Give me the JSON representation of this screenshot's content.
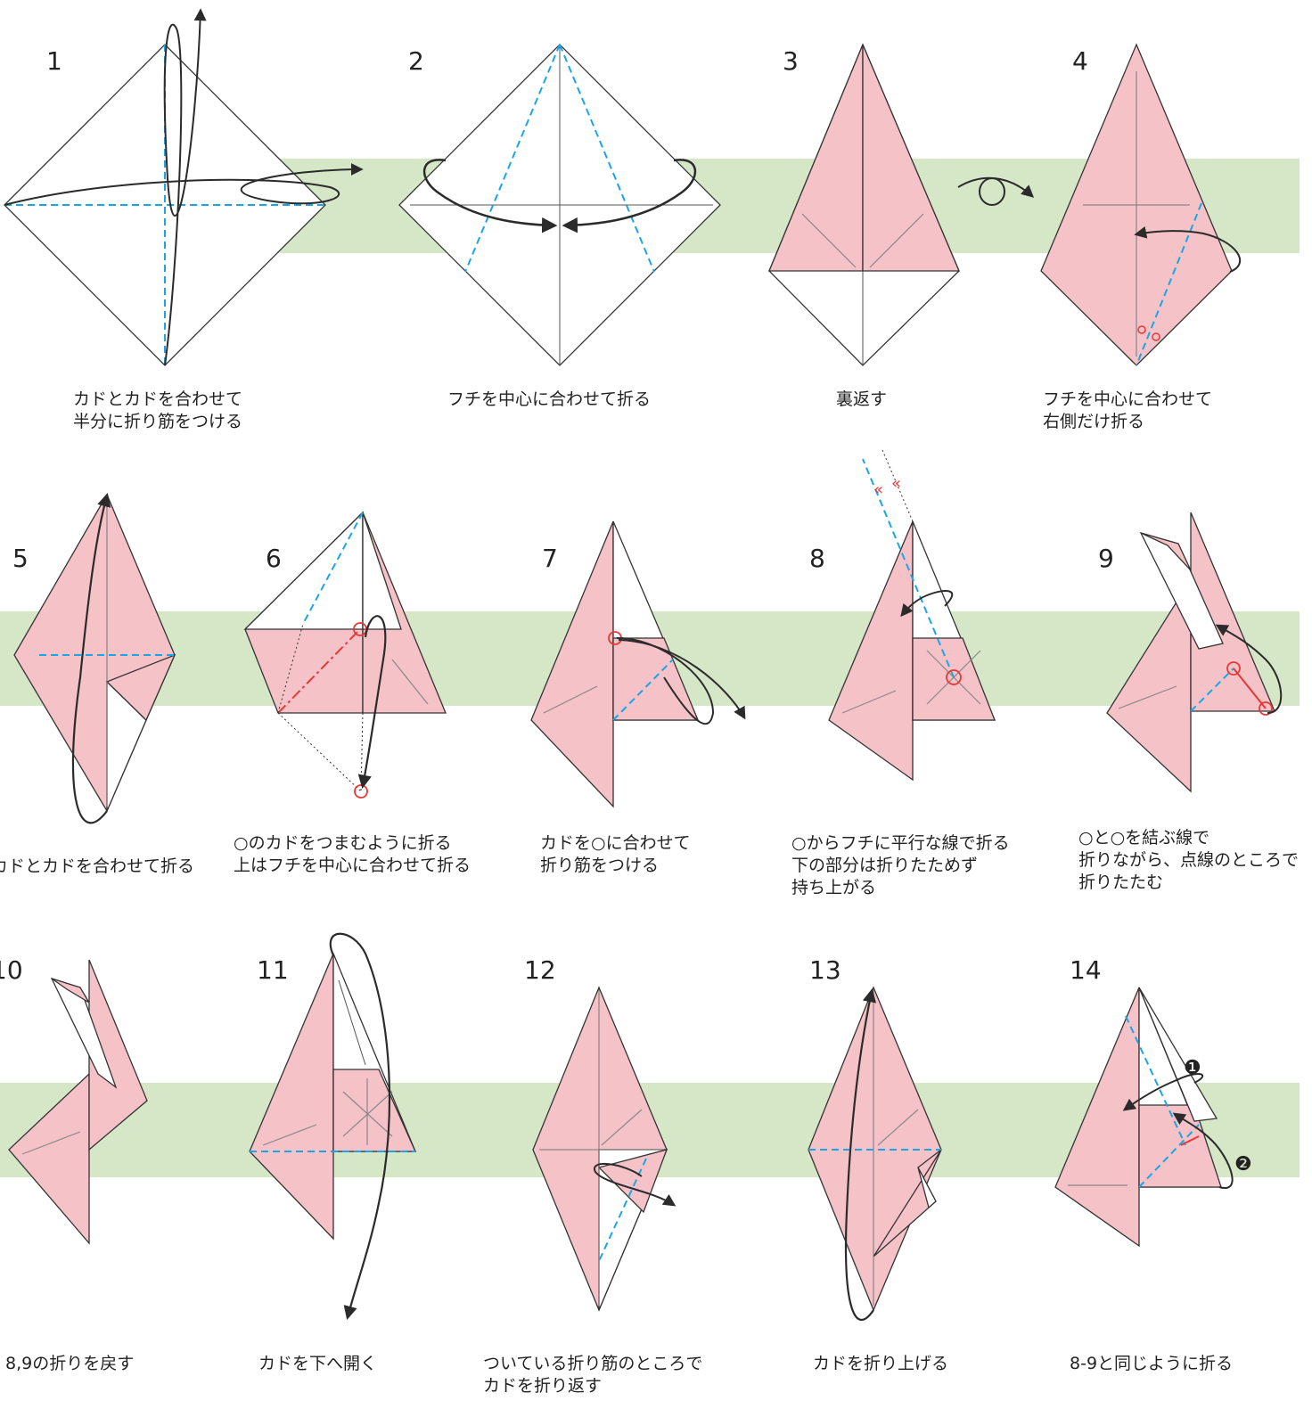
{
  "colors": {
    "paper_pink": "#f5c2c8",
    "paper_white": "#ffffff",
    "band_green": "#d6e7c8",
    "valley_fold_blue": "#1aa5e6",
    "mountain_fold_red": "#e53935",
    "arrow_dark": "#2b2b2b"
  },
  "icons": {
    "valley_fold": "blue-dashed-line",
    "mountain_fold": "red-dash-dot-line",
    "fold_arrow": "curved-arrow",
    "turn_over": "loop-arrow",
    "reference_mark": "red-circle",
    "step_marker_1": "❶",
    "step_marker_2": "❷"
  },
  "steps": [
    {
      "number": "1",
      "caption": "カドとカドを合わせて\n半分に折り筋をつける"
    },
    {
      "number": "2",
      "caption": "フチを中心に合わせて折る"
    },
    {
      "number": "3",
      "caption": "裏返す"
    },
    {
      "number": "4",
      "caption": "フチを中心に合わせて\n右側だけ折る"
    },
    {
      "number": "5",
      "caption": "カドとカドを合わせて折る"
    },
    {
      "number": "6",
      "caption": "○のカドをつまむように折る\n上はフチを中心に合わせて折る"
    },
    {
      "number": "7",
      "caption": "カドを○に合わせて\n折り筋をつける"
    },
    {
      "number": "8",
      "caption": "○からフチに平行な線で折る\n下の部分は折りたためず\n持ち上がる"
    },
    {
      "number": "9",
      "caption": "○と○を結ぶ線で\n折りながら、点線のところで\n折りたたむ"
    },
    {
      "number": "10",
      "caption": "8,9の折りを戻す"
    },
    {
      "number": "11",
      "caption": "カドを下へ開く"
    },
    {
      "number": "12",
      "caption": "ついている折り筋のところで\nカドを折り返す"
    },
    {
      "number": "13",
      "caption": "カドを折り上げる"
    },
    {
      "number": "14",
      "caption": "8-9と同じように折る"
    }
  ]
}
